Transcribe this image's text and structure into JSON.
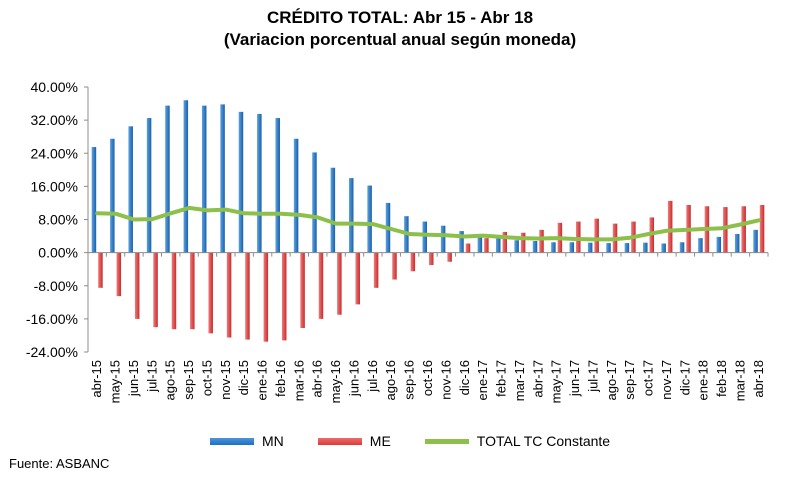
{
  "chart_data": {
    "type": "bar",
    "title": "CRÉDITO TOTAL: Abr 15 - Abr 18",
    "subtitle": "(Variacion porcentual anual según moneda)",
    "xlabel": "",
    "ylabel": "",
    "ylim": [
      -24,
      40
    ],
    "yticks": [
      "40.00%",
      "32.00%",
      "24.00%",
      "16.00%",
      "8.00%",
      "0.00%",
      "-8.00%",
      "-16.00%",
      "-24.00%"
    ],
    "ytick_values": [
      40,
      32,
      24,
      16,
      8,
      0,
      -8,
      -16,
      -24
    ],
    "grid": false,
    "legend_position": "bottom",
    "categories": [
      "abr-15",
      "may-15",
      "jun-15",
      "jul-15",
      "ago-15",
      "sep-15",
      "oct-15",
      "nov-15",
      "dic-15",
      "ene-16",
      "feb-16",
      "mar-16",
      "abr-16",
      "may-16",
      "jun-16",
      "jul-16",
      "ago-16",
      "sep-16",
      "oct-16",
      "nov-16",
      "dic-16",
      "ene-17",
      "feb-17",
      "mar-17",
      "abr-17",
      "may-17",
      "jun-17",
      "jul-17",
      "ago-17",
      "sep-17",
      "oct-17",
      "nov-17",
      "dic-17",
      "ene-18",
      "feb-18",
      "mar-18",
      "abr-18"
    ],
    "series": [
      {
        "name": "MN",
        "kind": "bar",
        "color": "#1f6fbf",
        "values": [
          25.5,
          27.5,
          30.5,
          32.5,
          35.5,
          36.8,
          35.5,
          35.8,
          34,
          33.5,
          32.5,
          27.5,
          24.2,
          20.5,
          18,
          16.2,
          12,
          8.8,
          7.5,
          6.5,
          5.2,
          4.2,
          3.8,
          3,
          2.8,
          2.5,
          2.5,
          2.4,
          2.3,
          2.3,
          2.4,
          2.2,
          2.5,
          3.5,
          3.8,
          4.5,
          5.5
        ]
      },
      {
        "name": "ME",
        "kind": "bar",
        "color": "#d93a3a",
        "values": [
          -8.5,
          -10.5,
          -16,
          -18,
          -18.5,
          -18.5,
          -19.5,
          -20.5,
          -21,
          -21.5,
          -21.2,
          -18.2,
          -16,
          -15,
          -12.5,
          -8.5,
          -6.5,
          -4.5,
          -3,
          -2.2,
          2.2,
          3.5,
          5,
          4.8,
          5.5,
          7.2,
          7.5,
          8.2,
          7,
          7.5,
          8.5,
          12.5,
          11.5,
          11.2,
          11,
          11.2,
          11.5
        ]
      },
      {
        "name": "TOTAL TC Constante",
        "kind": "line",
        "color": "#8cc04b",
        "values": [
          9.5,
          9.4,
          8,
          8.1,
          9.5,
          10.8,
          10.2,
          10.4,
          9.5,
          9.4,
          9.4,
          9.1,
          8.5,
          7,
          7,
          6.9,
          5.7,
          4.5,
          4.3,
          4.2,
          3.9,
          4.1,
          3.8,
          3.5,
          3.4,
          3.5,
          3.3,
          3.2,
          3.2,
          3.6,
          4.5,
          5.3,
          5.5,
          5.7,
          5.9,
          6.8,
          7.8
        ]
      }
    ]
  },
  "source": "Fuente: ASBANC"
}
